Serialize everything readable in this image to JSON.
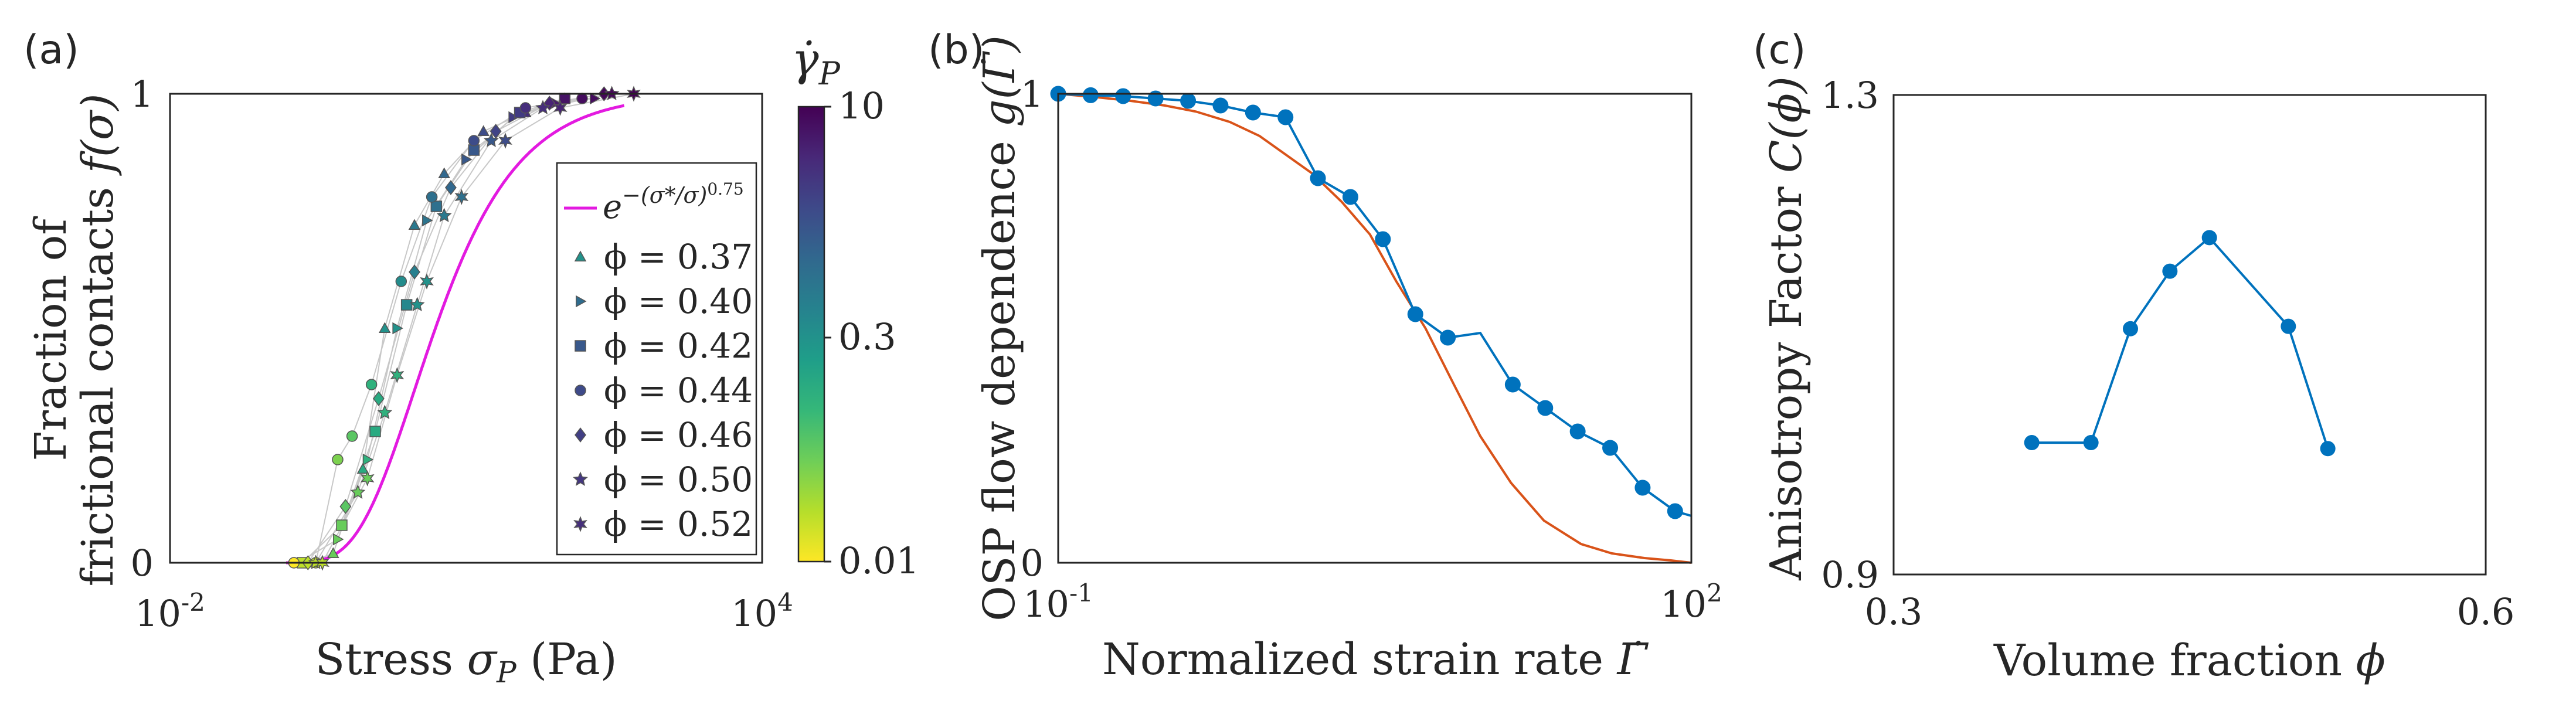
{
  "chart_data": [
    {
      "panel_label": "(a)",
      "type": "scatter",
      "ylabel_line1": "Fraction of",
      "ylabel_line2": "frictional contacts",
      "ylabel_math": "f(σ)",
      "xlabel_text": "Stress",
      "xlabel_math": "σ",
      "xlabel_sub": "P",
      "xlabel_unit": "(Pa)",
      "xscale": "log",
      "xlim": [
        0.01,
        10000
      ],
      "ylim": [
        0,
        1
      ],
      "x_ticks": [
        {
          "value": 0.01,
          "base": "10",
          "exp": "-2"
        },
        {
          "value": 10000,
          "base": "10",
          "exp": "4"
        }
      ],
      "y_ticks": [
        {
          "value": 0,
          "label": "0"
        },
        {
          "value": 1,
          "label": "1"
        }
      ],
      "colorbar": {
        "title": "γ̇",
        "title_sub": "P",
        "scale": "log",
        "range": [
          0.01,
          10
        ],
        "ticks": [
          {
            "value": 10,
            "label": "10"
          },
          {
            "value": 0.3,
            "label": "0.3"
          },
          {
            "value": 0.01,
            "label": "0.01"
          }
        ],
        "colors": [
          "#fde725",
          "#b5de2b",
          "#6ece58",
          "#35b779",
          "#1f9e89",
          "#26828e",
          "#31688e",
          "#3e4989",
          "#482878",
          "#440154"
        ]
      },
      "fit_curve": {
        "legend_base": "e",
        "legend_exp": "−(σ*/σ)",
        "legend_exp2": "0.75",
        "color": "#e31ae0",
        "sigma_star": 3,
        "beta": 0.75,
        "x_range": [
          0.3,
          400
        ]
      },
      "series": [
        {
          "label": "ϕ = 0.37",
          "marker": "triangle-up",
          "points": [
            [
              0.25,
              0,
              0.02
            ],
            [
              0.45,
              0.02,
              0.05
            ],
            [
              0.9,
              0.2,
              0.15
            ],
            [
              1.5,
              0.5,
              0.3
            ],
            [
              3,
              0.72,
              0.6
            ],
            [
              6,
              0.83,
              1
            ],
            [
              15,
              0.92,
              2
            ],
            [
              40,
              0.96,
              4
            ],
            [
              100,
              0.99,
              7
            ]
          ]
        },
        {
          "label": "ϕ = 0.40",
          "marker": "triangle-right",
          "points": [
            [
              0.2,
              0,
              0.02
            ],
            [
              0.5,
              0.05,
              0.05
            ],
            [
              1,
              0.22,
              0.12
            ],
            [
              2,
              0.5,
              0.3
            ],
            [
              4,
              0.73,
              0.7
            ],
            [
              10,
              0.86,
              1.5
            ],
            [
              30,
              0.95,
              3
            ],
            [
              80,
              0.98,
              6
            ],
            [
              200,
              0.99,
              8
            ]
          ]
        },
        {
          "label": "ϕ = 0.42",
          "marker": "square",
          "points": [
            [
              0.22,
              0,
              0.02
            ],
            [
              0.55,
              0.08,
              0.05
            ],
            [
              1.2,
              0.28,
              0.15
            ],
            [
              2.5,
              0.55,
              0.4
            ],
            [
              5,
              0.76,
              0.8
            ],
            [
              12,
              0.88,
              1.5
            ],
            [
              35,
              0.96,
              3
            ],
            [
              100,
              0.99,
              7
            ]
          ]
        },
        {
          "label": "ϕ = 0.44",
          "marker": "circle",
          "points": [
            [
              0.18,
              0,
              0.01
            ],
            [
              0.3,
              0,
              0.02
            ],
            [
              0.5,
              0.22,
              0.04
            ],
            [
              0.7,
              0.27,
              0.06
            ],
            [
              1.1,
              0.38,
              0.12
            ],
            [
              2.2,
              0.6,
              0.35
            ],
            [
              4.5,
              0.78,
              0.8
            ],
            [
              12,
              0.9,
              2
            ],
            [
              40,
              0.97,
              4
            ],
            [
              150,
              0.99,
              8
            ]
          ]
        },
        {
          "label": "ϕ = 0.46",
          "marker": "diamond",
          "points": [
            [
              0.25,
              0,
              0.02
            ],
            [
              0.6,
              0.12,
              0.06
            ],
            [
              1.3,
              0.35,
              0.15
            ],
            [
              3,
              0.62,
              0.5
            ],
            [
              7,
              0.8,
              1
            ],
            [
              20,
              0.92,
              2.5
            ],
            [
              70,
              0.98,
              5
            ],
            [
              250,
              1,
              9
            ]
          ]
        },
        {
          "label": "ϕ = 0.50",
          "marker": "pentagram",
          "points": [
            [
              0.3,
              0,
              0.02
            ],
            [
              0.8,
              0.15,
              0.05
            ],
            [
              1.5,
              0.32,
              0.12
            ],
            [
              3.2,
              0.55,
              0.3
            ],
            [
              6,
              0.74,
              0.6
            ],
            [
              18,
              0.9,
              1.5
            ],
            [
              60,
              0.97,
              4
            ],
            [
              300,
              1,
              9
            ]
          ]
        },
        {
          "label": "ϕ = 0.52",
          "marker": "hexagram",
          "points": [
            [
              0.35,
              0,
              0.02
            ],
            [
              1,
              0.18,
              0.05
            ],
            [
              2,
              0.4,
              0.12
            ],
            [
              4,
              0.6,
              0.3
            ],
            [
              9,
              0.78,
              0.8
            ],
            [
              25,
              0.9,
              2
            ],
            [
              90,
              0.97,
              5
            ],
            [
              500,
              1,
              10
            ]
          ]
        }
      ]
    },
    {
      "panel_label": "(b)",
      "type": "line",
      "ylabel_text": "OSP flow dependence",
      "ylabel_math": "g(Γ̇)",
      "xlabel_text": "Normalized strain rate",
      "xlabel_math": "Γ̇",
      "xscale": "log",
      "xlim": [
        0.1,
        100
      ],
      "ylim": [
        0,
        1
      ],
      "x_ticks": [
        {
          "value": 0.1,
          "base": "10",
          "exp": "-1"
        },
        {
          "value": 100,
          "base": "10",
          "exp": "2"
        }
      ],
      "y_ticks": [
        {
          "value": 0,
          "label": "0"
        },
        {
          "value": 1,
          "label": "1"
        }
      ],
      "series": [
        {
          "name": "measured",
          "color": "#0072bd",
          "marker": "circle",
          "x": [
            0.1,
            0.1425,
            0.2031,
            0.2894,
            0.4125,
            0.5878,
            0.8377,
            1.194,
            1.701,
            2.424,
            3.455,
            4.924,
            7.017,
            10,
            14.25,
            20.31,
            28.94,
            41.25,
            58.78,
            83.77,
            100
          ],
          "y": [
            1,
            0.997,
            0.995,
            0.99,
            0.985,
            0.975,
            0.96,
            0.95,
            0.82,
            0.78,
            0.69,
            0.53,
            0.48,
            0.49,
            0.38,
            0.33,
            0.28,
            0.245,
            0.16,
            0.11,
            0.1
          ],
          "marker_indices": [
            0,
            1,
            2,
            3,
            4,
            5,
            6,
            7,
            8,
            9,
            10,
            11,
            12,
            14,
            15,
            16,
            17,
            18,
            19
          ]
        },
        {
          "name": "model",
          "color": "#d95319",
          "marker": "none",
          "x": [
            0.1,
            0.15,
            0.22,
            0.32,
            0.45,
            0.65,
            0.9,
            1.2,
            1.6,
            2.2,
            3,
            4,
            5.5,
            7.5,
            10,
            14,
            20,
            30,
            42,
            60,
            80,
            100
          ],
          "y": [
            1,
            0.993,
            0.985,
            0.975,
            0.962,
            0.94,
            0.91,
            0.87,
            0.83,
            0.77,
            0.7,
            0.6,
            0.5,
            0.38,
            0.27,
            0.17,
            0.09,
            0.04,
            0.02,
            0.01,
            0.005,
            0
          ]
        }
      ]
    },
    {
      "panel_label": "(c)",
      "type": "line",
      "ylabel_text": "Anisotropy Factor",
      "ylabel_math": "C(ϕ)",
      "xlabel_text": "Volume fraction",
      "xlabel_math": "ϕ",
      "xscale": "linear",
      "xlim": [
        0.3,
        0.6
      ],
      "ylim": [
        0.9,
        1.3
      ],
      "x_ticks": [
        {
          "value": 0.3,
          "label": "0.3"
        },
        {
          "value": 0.6,
          "label": "0.6"
        }
      ],
      "y_ticks": [
        {
          "value": 0.9,
          "label": "0.9"
        },
        {
          "value": 1.3,
          "label": "1.3"
        }
      ],
      "series": [
        {
          "name": "C",
          "color": "#0072bd",
          "marker": "circle",
          "x": [
            0.37,
            0.4,
            0.42,
            0.44,
            0.46,
            0.5,
            0.52
          ],
          "y": [
            1.01,
            1.01,
            1.105,
            1.153,
            1.181,
            1.107,
            1.005
          ]
        }
      ]
    }
  ]
}
